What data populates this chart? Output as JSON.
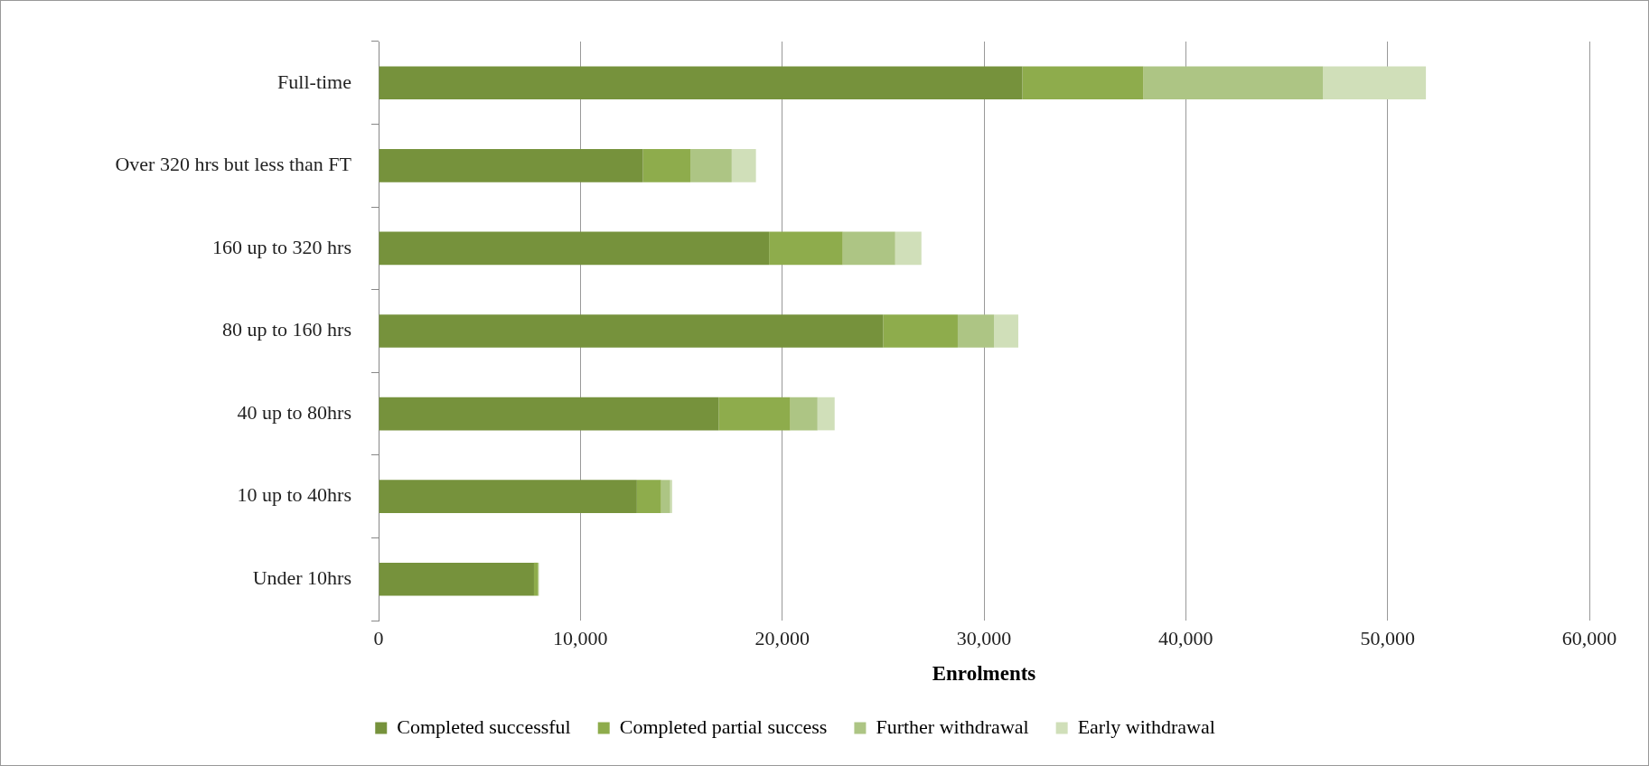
{
  "chart_data": {
    "type": "bar",
    "orientation": "horizontal",
    "stacked": true,
    "xlabel": "Enrolments",
    "categories": [
      "Full-time",
      "Over 320 hrs but less than FT",
      "160 up to 320 hrs",
      "80 up to 160 hrs",
      "40 up to 80hrs",
      "10 up to 40hrs",
      "Under 10hrs"
    ],
    "series": [
      {
        "name": "Completed successful",
        "color": "#76923c",
        "values": [
          31900,
          13100,
          19350,
          25000,
          16850,
          12800,
          7700
        ]
      },
      {
        "name": "Completed partial success",
        "color": "#8eac4c",
        "values": [
          6000,
          2350,
          3650,
          3700,
          3550,
          1200,
          200
        ]
      },
      {
        "name": "Further withdrawal",
        "color": "#adc584",
        "values": [
          8900,
          2050,
          2600,
          1800,
          1350,
          450,
          30
        ]
      },
      {
        "name": "Early withdrawal",
        "color": "#d0dfb9",
        "values": [
          5100,
          1200,
          1300,
          1200,
          850,
          100,
          20
        ]
      }
    ],
    "xlim": [
      0,
      60000
    ],
    "xticks": [
      0,
      {
        "value": 10000,
        "label": "10,000"
      },
      {
        "value": 20000,
        "label": "20,000"
      },
      {
        "value": 30000,
        "label": "30,000"
      },
      {
        "value": 40000,
        "label": "40,000"
      },
      {
        "value": 50000,
        "label": "50,000"
      },
      {
        "value": 60000,
        "label": "60,000"
      }
    ],
    "grid": "x",
    "legend": "bottom"
  }
}
